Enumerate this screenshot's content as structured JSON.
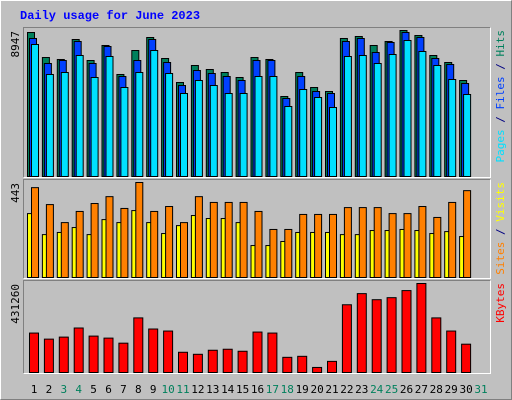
{
  "chart_data": [
    {
      "type": "bar",
      "title": "Daily usage for June 2023",
      "legend_separator": " / ",
      "ylim": [
        0,
        8947
      ],
      "yticks": [
        8947
      ],
      "series": [
        {
          "name": "Pages",
          "color": "#00e0ff",
          "values": [
            8089,
            6251,
            6373,
            7415,
            6067,
            7354,
            5454,
            6373,
            7721,
            6312,
            5086,
            5883,
            5576,
            5086,
            5086,
            6128,
            6128,
            4290,
            5331,
            4841,
            4228,
            7354,
            7415,
            6925,
            7476,
            8334,
            7660,
            6802,
            5944,
            5025,
            0
          ]
        },
        {
          "name": "Files",
          "color": "#0040ff",
          "values": [
            8457,
            6925,
            7108,
            8273,
            6925,
            7966,
            6128,
            7108,
            8395,
            6986,
            5576,
            6496,
            6312,
            6128,
            5883,
            7108,
            7108,
            4780,
            6128,
            5209,
            5086,
            8273,
            8457,
            7599,
            8212,
            8824,
            8518,
            7231,
            6863,
            5699,
            0
          ]
        },
        {
          "name": "Hits",
          "color": "#00805c",
          "values": [
            8824,
            7292,
            7170,
            8395,
            7108,
            8028,
            6251,
            7721,
            8518,
            7231,
            5760,
            6802,
            6557,
            6373,
            6067,
            7292,
            7170,
            4902,
            6373,
            5454,
            5209,
            8457,
            8579,
            8028,
            8273,
            8947,
            8640,
            7415,
            6986,
            5883,
            0
          ]
        }
      ]
    },
    {
      "type": "bar",
      "ylim": [
        0,
        443
      ],
      "yticks": [
        443
      ],
      "series": [
        {
          "name": "Sites",
          "color": "#ff8000",
          "values": [
            419,
            340,
            256,
            308,
            345,
            377,
            322,
            443,
            308,
            331,
            256,
            377,
            350,
            350,
            350,
            308,
            224,
            224,
            294,
            294,
            294,
            326,
            326,
            326,
            298,
            298,
            331,
            280,
            350,
            405,
            0
          ]
        },
        {
          "name": "Visits",
          "color": "#ffff00",
          "values": [
            298,
            200,
            210,
            233,
            200,
            270,
            256,
            312,
            256,
            205,
            242,
            289,
            275,
            275,
            256,
            149,
            149,
            168,
            210,
            210,
            210,
            200,
            200,
            219,
            219,
            224,
            219,
            205,
            214,
            191,
            0
          ]
        }
      ]
    },
    {
      "type": "bar",
      "ylim": [
        0,
        431260
      ],
      "yticks": [
        431260
      ],
      "categories": [
        "1",
        "2",
        "3",
        "4",
        "5",
        "6",
        "7",
        "8",
        "9",
        "10",
        "11",
        "12",
        "13",
        "14",
        "15",
        "16",
        "17",
        "18",
        "19",
        "20",
        "21",
        "22",
        "23",
        "24",
        "25",
        "26",
        "27",
        "28",
        "29",
        "30",
        "31"
      ],
      "category_colors": [
        "#000000",
        "#000000",
        "#00805c",
        "#00805c",
        "#000000",
        "#000000",
        "#000000",
        "#000000",
        "#000000",
        "#00805c",
        "#00805c",
        "#000000",
        "#000000",
        "#000000",
        "#000000",
        "#000000",
        "#00805c",
        "#00805c",
        "#000000",
        "#000000",
        "#000000",
        "#000000",
        "#000000",
        "#00805c",
        "#00805c",
        "#000000",
        "#000000",
        "#000000",
        "#000000",
        "#000000",
        "#00805c"
      ],
      "series": [
        {
          "name": "KBytes",
          "color": "#ff0000",
          "values": [
            191100,
            161700,
            171500,
            215600,
            176400,
            166600,
            142100,
            264600,
            210700,
            200900,
            98000,
            88200,
            107800,
            112700,
            102900,
            196000,
            191100,
            73500,
            78400,
            24500,
            53900,
            328300,
            382200,
            352800,
            362600,
            396900,
            431260,
            264600,
            200900,
            137200,
            0
          ]
        }
      ]
    }
  ]
}
